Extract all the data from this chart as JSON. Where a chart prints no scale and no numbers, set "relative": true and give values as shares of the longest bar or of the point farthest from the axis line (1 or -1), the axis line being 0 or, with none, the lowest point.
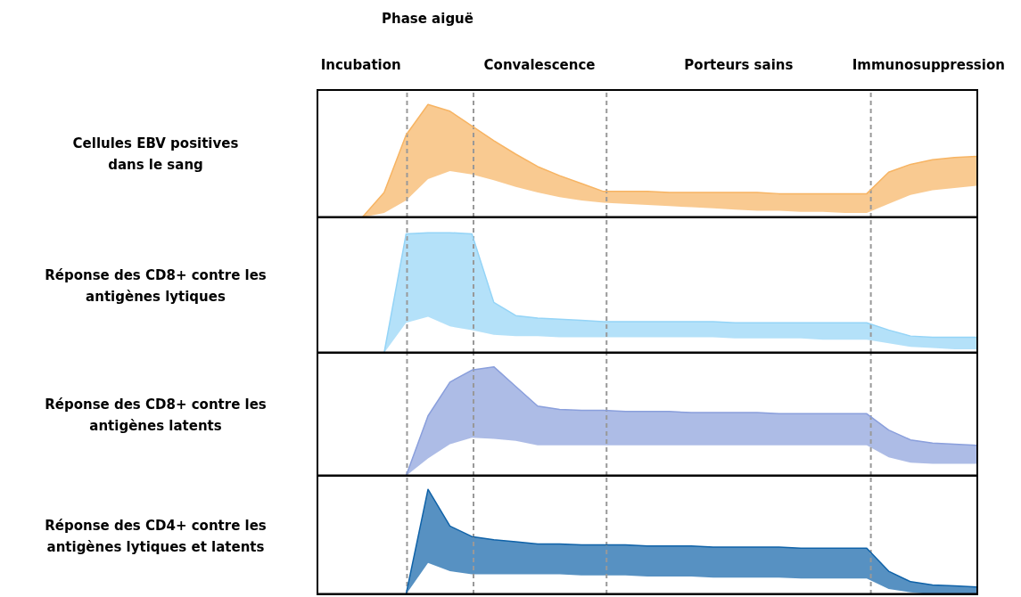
{
  "chart_data": [
    {
      "type": "line",
      "title": "Phase aiguë",
      "ylabel": "Cellules EBV positives\ndans le sang",
      "relative": true,
      "annotations": [
        "Incubation",
        "Convalescence",
        "Porteurs sains",
        "Immunosuppression"
      ],
      "categories": [
        null,
        null,
        null,
        null,
        null,
        null,
        null,
        null,
        null,
        null,
        null,
        null,
        null,
        null,
        null,
        null,
        null,
        null,
        null,
        null,
        null,
        null,
        null,
        null,
        null,
        null,
        null,
        null,
        null,
        null,
        null
      ],
      "series": [
        {
          "color": "#f7b463",
          "values": [
            null,
            null,
            0,
            0.22,
            0.73,
            1,
            0.94,
            0.81,
            0.68,
            0.56,
            0.45,
            0.37,
            0.3,
            0.23,
            0.23,
            0.23,
            0.22,
            0.22,
            0.22,
            0.22,
            0.22,
            0.21,
            0.21,
            0.21,
            0.21,
            0.21,
            0.4,
            0.47,
            0.51,
            0.53,
            0.54
          ],
          "upper": [
            null,
            null,
            0,
            0.22,
            0.73,
            1,
            0.94,
            0.81,
            0.68,
            0.56,
            0.45,
            0.37,
            0.3,
            0.23,
            0.23,
            0.23,
            0.22,
            0.22,
            0.22,
            0.22,
            0.22,
            0.21,
            0.21,
            0.21,
            0.21,
            0.21,
            0.4,
            0.47,
            0.51,
            0.53,
            0.54
          ],
          "lower": [
            null,
            null,
            0,
            0.04,
            0.15,
            0.34,
            0.41,
            0.38,
            0.33,
            0.27,
            0.22,
            0.18,
            0.15,
            0.13,
            0.12,
            0.11,
            0.1,
            0.09,
            0.08,
            0.07,
            0.06,
            0.06,
            0.05,
            0.05,
            0.04,
            0.04,
            0.12,
            0.2,
            0.24,
            0.26,
            0.28
          ]
        }
      ]
    },
    {
      "type": "line",
      "ylabel": "Réponse des CD8+ contre les antigènes lytiques",
      "relative": true,
      "categories": [
        null,
        null,
        null,
        null,
        null,
        null,
        null,
        null,
        null,
        null,
        null,
        null,
        null,
        null,
        null,
        null,
        null,
        null,
        null,
        null,
        null,
        null,
        null,
        null,
        null,
        null,
        null,
        null,
        null,
        null,
        null
      ],
      "series": [
        {
          "color": "#94d4f7",
          "values": [
            null,
            null,
            null,
            0,
            0.99,
            1,
            1,
            0.99,
            0.42,
            0.31,
            0.29,
            0.28,
            0.27,
            0.26,
            0.26,
            0.26,
            0.26,
            0.26,
            0.26,
            0.25,
            0.25,
            0.25,
            0.25,
            0.25,
            0.25,
            0.25,
            0.19,
            0.14,
            0.13,
            0.13,
            0.13
          ],
          "upper": [
            null,
            null,
            null,
            0,
            0.99,
            1,
            1,
            0.99,
            0.42,
            0.31,
            0.29,
            0.28,
            0.27,
            0.26,
            0.26,
            0.26,
            0.26,
            0.26,
            0.26,
            0.25,
            0.25,
            0.25,
            0.25,
            0.25,
            0.25,
            0.25,
            0.19,
            0.14,
            0.13,
            0.13,
            0.13
          ],
          "lower": [
            null,
            null,
            null,
            0,
            0.25,
            0.3,
            0.22,
            0.19,
            0.15,
            0.14,
            0.14,
            0.13,
            0.13,
            0.13,
            0.13,
            0.13,
            0.13,
            0.13,
            0.13,
            0.12,
            0.12,
            0.12,
            0.12,
            0.11,
            0.11,
            0.11,
            0.08,
            0.05,
            0.04,
            0.03,
            0.03
          ]
        }
      ]
    },
    {
      "type": "line",
      "ylabel": "Réponse des CD8+ contre les antigènes latents",
      "relative": true,
      "categories": [
        null,
        null,
        null,
        null,
        null,
        null,
        null,
        null,
        null,
        null,
        null,
        null,
        null,
        null,
        null,
        null,
        null,
        null,
        null,
        null,
        null,
        null,
        null,
        null,
        null,
        null,
        null,
        null,
        null,
        null,
        null
      ],
      "series": [
        {
          "color": "#8a9fdc",
          "values": [
            null,
            null,
            null,
            null,
            0,
            0.55,
            0.86,
            0.97,
            1,
            0.82,
            0.64,
            0.61,
            0.6,
            0.6,
            0.59,
            0.59,
            0.59,
            0.58,
            0.58,
            0.58,
            0.58,
            0.57,
            0.57,
            0.57,
            0.57,
            0.57,
            0.42,
            0.33,
            0.3,
            0.29,
            0.28
          ],
          "upper": [
            null,
            null,
            null,
            null,
            0,
            0.55,
            0.86,
            0.97,
            1,
            0.82,
            0.64,
            0.61,
            0.6,
            0.6,
            0.59,
            0.59,
            0.59,
            0.58,
            0.58,
            0.58,
            0.58,
            0.57,
            0.57,
            0.57,
            0.57,
            0.57,
            0.42,
            0.33,
            0.3,
            0.29,
            0.28
          ],
          "lower": [
            null,
            null,
            null,
            null,
            0,
            0.16,
            0.29,
            0.35,
            0.34,
            0.32,
            0.28,
            0.28,
            0.28,
            0.28,
            0.28,
            0.28,
            0.28,
            0.28,
            0.28,
            0.28,
            0.28,
            0.28,
            0.28,
            0.28,
            0.28,
            0.28,
            0.17,
            0.12,
            0.11,
            0.11,
            0.11
          ]
        }
      ]
    },
    {
      "type": "line",
      "ylabel": "Réponse des CD4+ contre les antigènes lytiques et latents",
      "relative": true,
      "categories": [
        null,
        null,
        null,
        null,
        null,
        null,
        null,
        null,
        null,
        null,
        null,
        null,
        null,
        null,
        null,
        null,
        null,
        null,
        null,
        null,
        null,
        null,
        null,
        null,
        null,
        null,
        null,
        null,
        null,
        null,
        null
      ],
      "series": [
        {
          "color": "#0f62a8",
          "values": [
            null,
            null,
            null,
            null,
            0,
            1,
            0.65,
            0.55,
            0.52,
            0.5,
            0.48,
            0.48,
            0.47,
            0.47,
            0.47,
            0.46,
            0.46,
            0.46,
            0.45,
            0.45,
            0.45,
            0.45,
            0.44,
            0.44,
            0.44,
            0.44,
            0.22,
            0.12,
            0.09,
            0.08,
            0.07
          ],
          "upper": [
            null,
            null,
            null,
            null,
            0,
            1,
            0.65,
            0.55,
            0.52,
            0.5,
            0.48,
            0.48,
            0.47,
            0.47,
            0.47,
            0.46,
            0.46,
            0.46,
            0.45,
            0.45,
            0.45,
            0.45,
            0.44,
            0.44,
            0.44,
            0.44,
            0.22,
            0.12,
            0.09,
            0.08,
            0.07
          ],
          "lower": [
            null,
            null,
            null,
            null,
            0,
            0.3,
            0.22,
            0.19,
            0.19,
            0.19,
            0.19,
            0.19,
            0.18,
            0.18,
            0.18,
            0.17,
            0.17,
            0.17,
            0.16,
            0.16,
            0.16,
            0.16,
            0.15,
            0.15,
            0.15,
            0.15,
            0.05,
            0.02,
            0,
            0,
            0
          ]
        }
      ]
    }
  ]
}
